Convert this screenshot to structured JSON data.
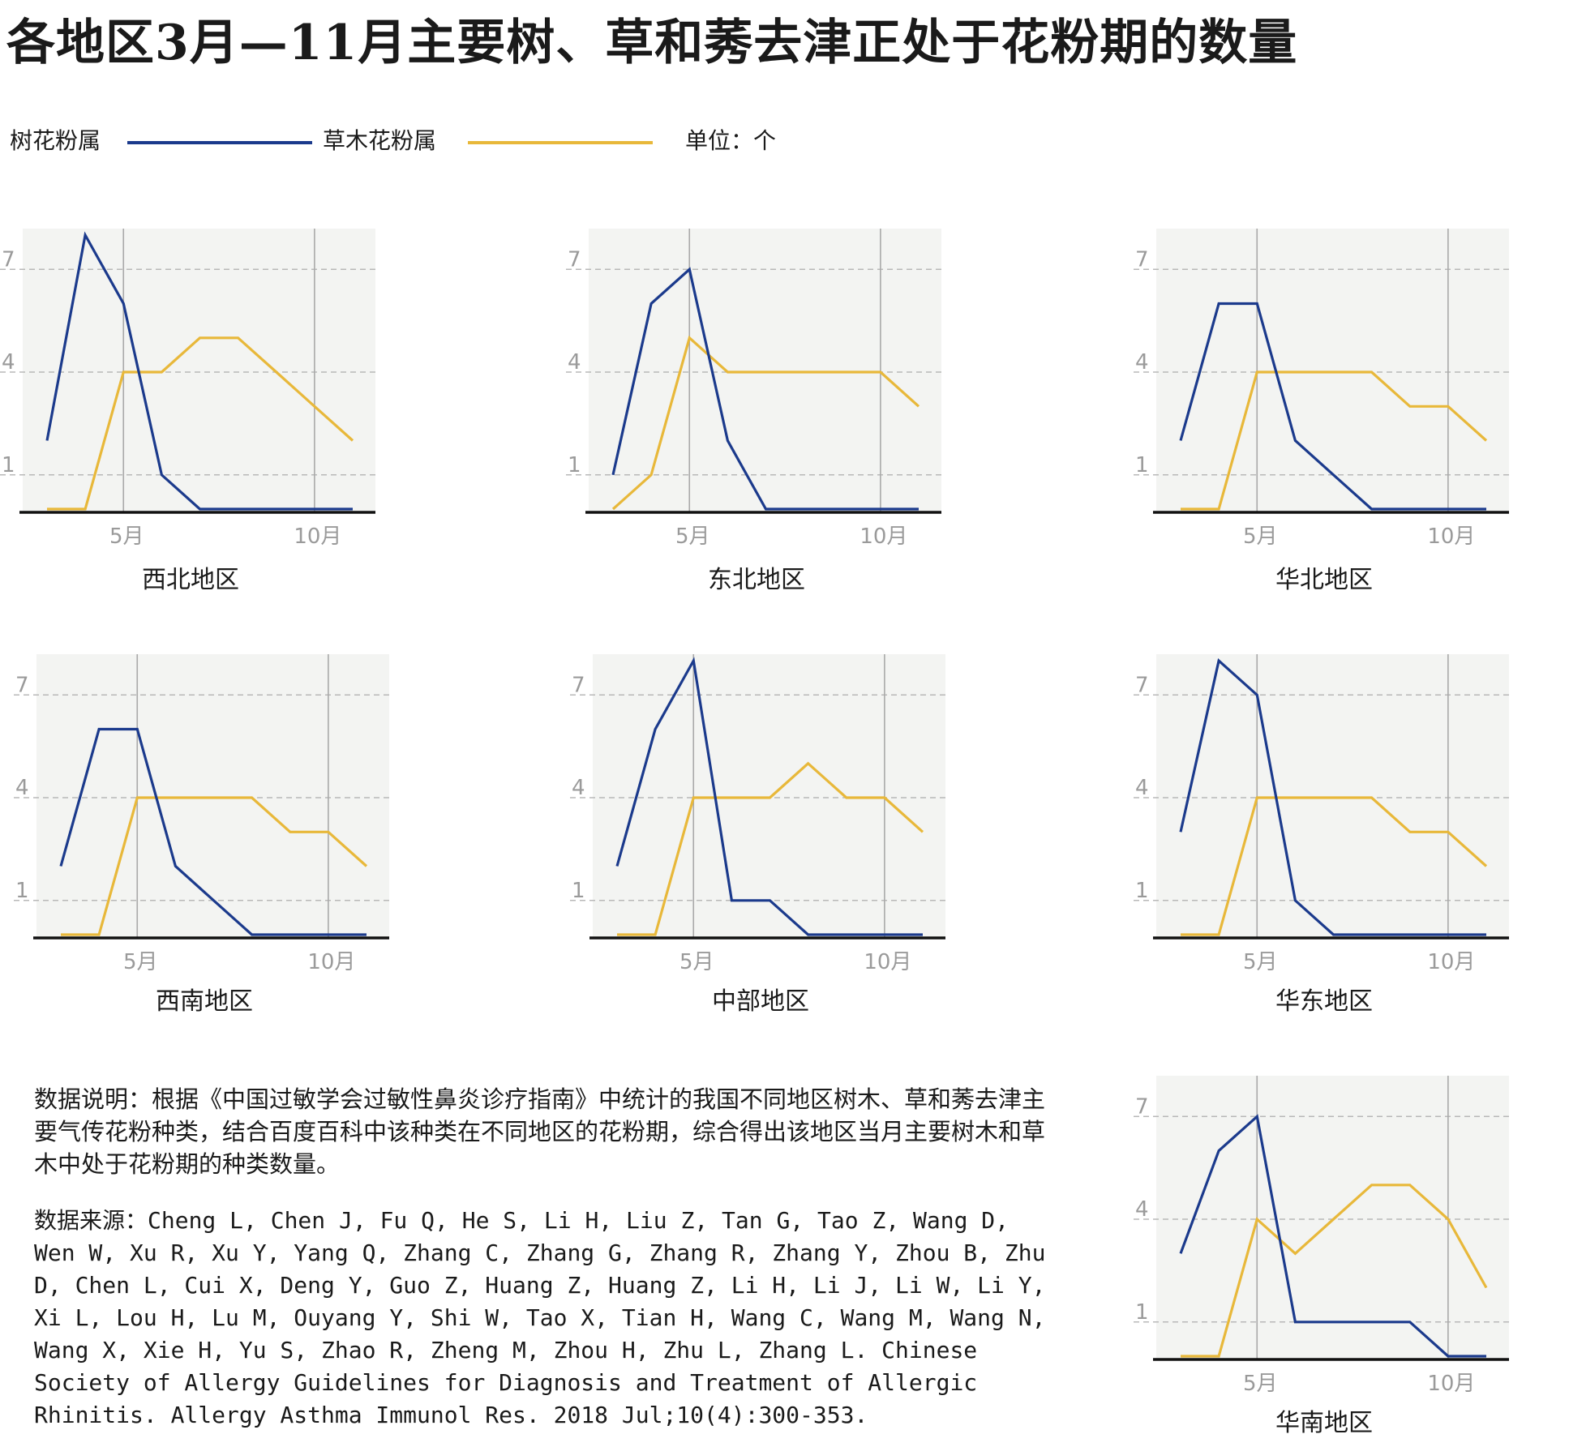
{
  "title": "各地区3月—11月主要树、草和莠去津正处于花粉期的数量",
  "legend": {
    "tree_label": "树花粉属",
    "grass_label": "草木花粉属",
    "unit": "单位：个"
  },
  "colors": {
    "tree": "#1b3a8c",
    "grass": "#e8b83a",
    "plot_bg": "#f3f4f2",
    "grid": "#b8b8b8",
    "axis": "#111111"
  },
  "note": "数据说明：根据《中国过敏学会过敏性鼻炎诊疗指南》中统计的我国不同地区树木、草和莠去津主要气传花粉种类，结合百度百科中该种类在不同地区的花粉期，综合得出该地区当月主要树木和草木中处于花粉期的种类数量。",
  "source": "数据来源：Cheng L, Chen J, Fu Q, He S, Li H, Liu Z, Tan G, Tao Z, Wang D, Wen W, Xu R, Xu Y, Yang Q, Zhang C, Zhang G, Zhang R, Zhang Y, Zhou B, Zhu D, Chen L, Cui X, Deng Y, Guo Z, Huang Z, Huang Z, Li H, Li J, Li W, Li Y, Xi L, Lou H, Lu M, Ouyang Y, Shi W, Tao X, Tian H, Wang C, Wang M, Wang N, Wang X, Xie H, Yu S, Zhao R, Zheng M, Zhou H, Zhu L, Zhang L.  Chinese Society of Allergy Guidelines for Diagnosis and Treatment of Allergic Rhinitis.  Allergy Asthma Immunol Res. 2018 Jul;10(4):300-353.",
  "chart_data": [
    {
      "type": "line",
      "title": "西北地区",
      "x": [
        3,
        4,
        5,
        6,
        7,
        8,
        9,
        10,
        11
      ],
      "x_ticks": [
        "5月",
        "10月"
      ],
      "y_ticks": [
        "1",
        "4",
        "7"
      ],
      "ylim": [
        0,
        8
      ],
      "grid": true,
      "series": [
        {
          "name": "树花粉属",
          "values": [
            2,
            8,
            6,
            1,
            0,
            0,
            0,
            0,
            0
          ]
        },
        {
          "name": "草木花粉属",
          "values": [
            0,
            0,
            4,
            4,
            5,
            5,
            4,
            3,
            2
          ]
        }
      ]
    },
    {
      "type": "line",
      "title": "东北地区",
      "x": [
        3,
        4,
        5,
        6,
        7,
        8,
        9,
        10,
        11
      ],
      "x_ticks": [
        "5月",
        "10月"
      ],
      "y_ticks": [
        "1",
        "4",
        "7"
      ],
      "ylim": [
        0,
        8
      ],
      "grid": true,
      "series": [
        {
          "name": "树花粉属",
          "values": [
            1,
            6,
            7,
            2,
            0,
            0,
            0,
            0,
            0
          ]
        },
        {
          "name": "草木花粉属",
          "values": [
            0,
            1,
            5,
            4,
            4,
            4,
            4,
            4,
            3
          ]
        }
      ]
    },
    {
      "type": "line",
      "title": "华北地区",
      "x": [
        3,
        4,
        5,
        6,
        7,
        8,
        9,
        10,
        11
      ],
      "x_ticks": [
        "5月",
        "10月"
      ],
      "y_ticks": [
        "1",
        "4",
        "7"
      ],
      "ylim": [
        0,
        8
      ],
      "grid": true,
      "series": [
        {
          "name": "树花粉属",
          "values": [
            2,
            6,
            6,
            2,
            1,
            0,
            0,
            0,
            0
          ]
        },
        {
          "name": "草木花粉属",
          "values": [
            0,
            0,
            4,
            4,
            4,
            4,
            3,
            3,
            2
          ]
        }
      ]
    },
    {
      "type": "line",
      "title": "西南地区",
      "x": [
        3,
        4,
        5,
        6,
        7,
        8,
        9,
        10,
        11
      ],
      "x_ticks": [
        "5月",
        "10月"
      ],
      "y_ticks": [
        "1",
        "4",
        "7"
      ],
      "ylim": [
        0,
        8
      ],
      "grid": true,
      "series": [
        {
          "name": "树花粉属",
          "values": [
            2,
            6,
            6,
            2,
            1,
            0,
            0,
            0,
            0
          ]
        },
        {
          "name": "草木花粉属",
          "values": [
            0,
            0,
            4,
            4,
            4,
            4,
            3,
            3,
            2
          ]
        }
      ]
    },
    {
      "type": "line",
      "title": "中部地区",
      "x": [
        3,
        4,
        5,
        6,
        7,
        8,
        9,
        10,
        11
      ],
      "x_ticks": [
        "5月",
        "10月"
      ],
      "y_ticks": [
        "1",
        "4",
        "7"
      ],
      "ylim": [
        0,
        8
      ],
      "grid": true,
      "series": [
        {
          "name": "树花粉属",
          "values": [
            2,
            6,
            8,
            1,
            1,
            0,
            0,
            0,
            0
          ]
        },
        {
          "name": "草木花粉属",
          "values": [
            0,
            0,
            4,
            4,
            4,
            5,
            4,
            4,
            3
          ]
        }
      ]
    },
    {
      "type": "line",
      "title": "华东地区",
      "x": [
        3,
        4,
        5,
        6,
        7,
        8,
        9,
        10,
        11
      ],
      "x_ticks": [
        "5月",
        "10月"
      ],
      "y_ticks": [
        "1",
        "4",
        "7"
      ],
      "ylim": [
        0,
        8
      ],
      "grid": true,
      "series": [
        {
          "name": "树花粉属",
          "values": [
            3,
            8,
            7,
            1,
            0,
            0,
            0,
            0,
            0
          ]
        },
        {
          "name": "草木花粉属",
          "values": [
            0,
            0,
            4,
            4,
            4,
            4,
            3,
            3,
            2
          ]
        }
      ]
    },
    {
      "type": "line",
      "title": "华南地区",
      "x": [
        3,
        4,
        5,
        6,
        7,
        8,
        9,
        10,
        11
      ],
      "x_ticks": [
        "5月",
        "10月"
      ],
      "y_ticks": [
        "1",
        "4",
        "7"
      ],
      "ylim": [
        0,
        8
      ],
      "grid": true,
      "series": [
        {
          "name": "树花粉属",
          "values": [
            3,
            6,
            7,
            1,
            1,
            1,
            1,
            0,
            0
          ]
        },
        {
          "name": "草木花粉属",
          "values": [
            0,
            0,
            4,
            3,
            4,
            5,
            5,
            4,
            2
          ]
        }
      ]
    }
  ]
}
